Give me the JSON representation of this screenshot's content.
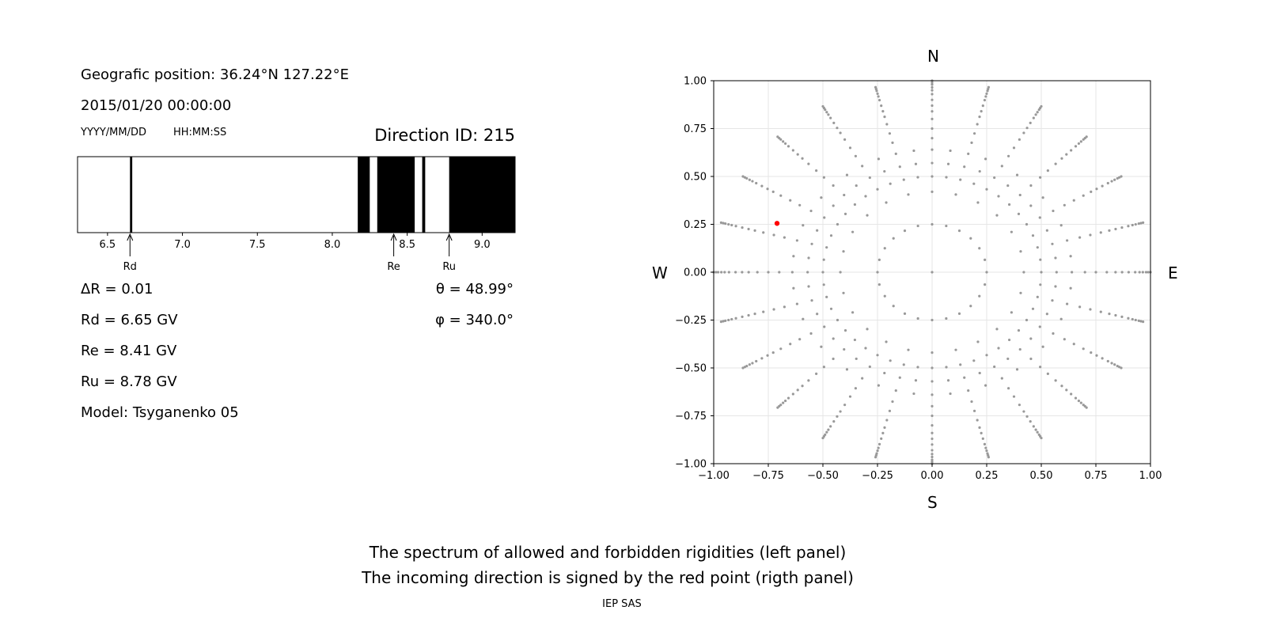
{
  "left_panel": {
    "geo_position": "Geografic position: 36.24°N 127.22°E",
    "datetime": "2015/01/20 00:00:00",
    "date_format": "YYYY/MM/DD",
    "time_format": "HH:MM:SS",
    "direction_id": "Direction ID: 215",
    "delta_r": "ΔR = 0.01",
    "rd_text": "Rd = 6.65 GV",
    "re_text": "Re = 8.41 GV",
    "ru_text": "Ru = 8.78 GV",
    "model": "Model: Tsyganenko 05",
    "theta": "θ = 48.99°",
    "phi": "φ = 340.0°"
  },
  "compass": {
    "north": "N",
    "south": "S",
    "west": "W",
    "east": "E"
  },
  "footer": {
    "line1": "The spectrum of allowed and forbidden rigidities (left panel)",
    "line2": "The incoming direction is signed by the red point (rigth panel)",
    "credit": "IEP SAS"
  },
  "colors": {
    "forbidden": "#000000",
    "allowed": "#ffffff",
    "grid_point": "#999999",
    "direction_point": "#ff0000"
  },
  "chart_data": [
    {
      "type": "spectrum",
      "xlim": [
        6.3,
        9.22
      ],
      "ticks": [
        6.5,
        7.0,
        7.5,
        8.0,
        8.5,
        9.0
      ],
      "tick_labels": [
        "6.5",
        "7.0",
        "7.5",
        "8.0",
        "8.5",
        "9.0"
      ],
      "forbidden_bands": [
        [
          6.65,
          6.665
        ],
        [
          8.17,
          8.25
        ],
        [
          8.3,
          8.55
        ],
        [
          8.6,
          8.62
        ],
        [
          8.78,
          9.22
        ]
      ],
      "markers": [
        {
          "label": "Rd",
          "value": 6.65
        },
        {
          "label": "Re",
          "value": 8.41
        },
        {
          "label": "Ru",
          "value": 8.78
        }
      ]
    },
    {
      "type": "scatter",
      "xlim": [
        -1.0,
        1.0
      ],
      "ylim": [
        -1.0,
        1.0
      ],
      "ticks": [
        -1.0,
        -0.75,
        -0.5,
        -0.25,
        0.0,
        0.25,
        0.5,
        0.75,
        1.0
      ],
      "tick_labels": [
        "−1.00",
        "−0.75",
        "−0.50",
        "−0.25",
        "0.00",
        "0.25",
        "0.50",
        "0.75",
        "1.00"
      ],
      "y_tick_labels": [
        "−1.00",
        "−0.75",
        "−0.50",
        "−0.25",
        "0.00",
        "0.25",
        "0.50",
        "0.75",
        "1.00"
      ],
      "grid": true,
      "direction_grid": {
        "rings": [
          0.0,
          0.25,
          0.42,
          0.5,
          0.57,
          0.64,
          0.7,
          0.75,
          0.8,
          0.84,
          0.87,
          0.9,
          0.93,
          0.95,
          0.965,
          0.98,
          0.99,
          1.0
        ],
        "ring_point_counts": [
          1,
          24,
          24,
          48,
          48,
          48,
          24,
          24,
          24,
          24,
          24,
          24,
          24,
          24,
          24,
          24,
          24,
          24
        ]
      },
      "highlight_point": {
        "x": -0.71,
        "y": 0.255
      }
    }
  ]
}
